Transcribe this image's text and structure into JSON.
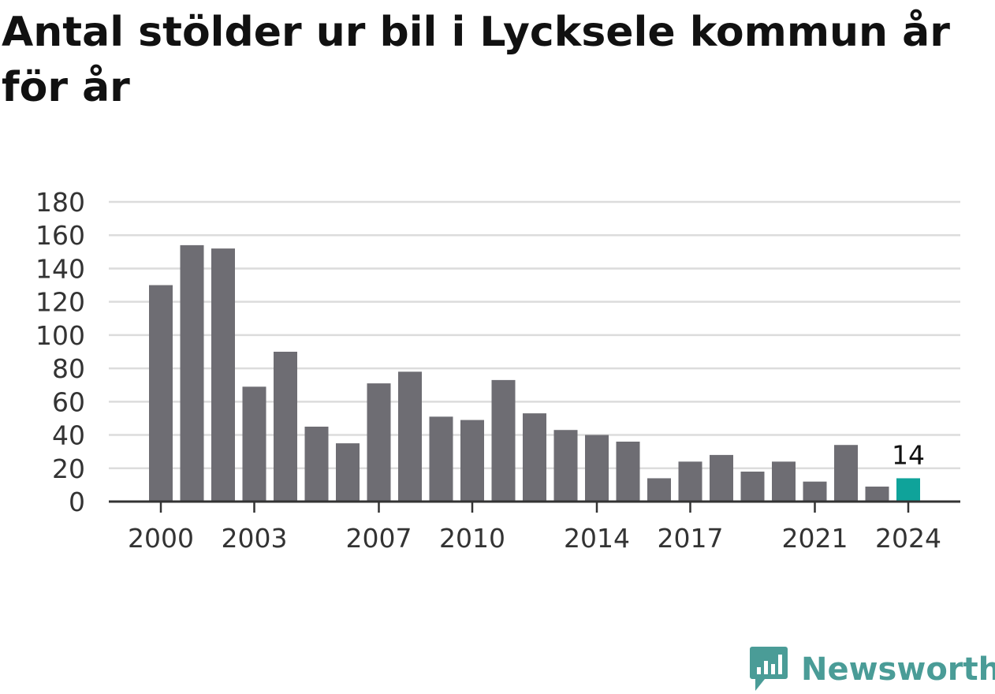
{
  "title": "Antal stölder ur bil i Lycksele kommun år för år",
  "brand": {
    "name": "Newsworthy",
    "icon": "newsworthy-logo-icon",
    "color": "#4a9c97"
  },
  "chart_data": {
    "type": "bar",
    "title": "Antal stölder ur bil i Lycksele kommun år för år",
    "xlabel": "",
    "ylabel": "",
    "x": [
      2000,
      2001,
      2002,
      2003,
      2004,
      2005,
      2006,
      2007,
      2008,
      2009,
      2010,
      2011,
      2012,
      2013,
      2014,
      2015,
      2016,
      2017,
      2018,
      2019,
      2020,
      2021,
      2022,
      2023,
      2024
    ],
    "values": [
      130,
      154,
      152,
      69,
      90,
      45,
      35,
      71,
      78,
      51,
      49,
      73,
      53,
      43,
      40,
      36,
      14,
      24,
      28,
      18,
      24,
      12,
      34,
      9,
      14
    ],
    "x_tick_labels": [
      "2000",
      "2003",
      "2007",
      "2010",
      "2014",
      "2017",
      "2021",
      "2024"
    ],
    "y_ticks": [
      0,
      20,
      40,
      60,
      80,
      100,
      120,
      140,
      160,
      180
    ],
    "ylim": [
      0,
      180
    ],
    "grid": true,
    "legend": "none",
    "bar_color": "#6e6d73",
    "highlight_color": "#0fa39a",
    "highlight": {
      "x": 2024,
      "label": "14"
    }
  }
}
